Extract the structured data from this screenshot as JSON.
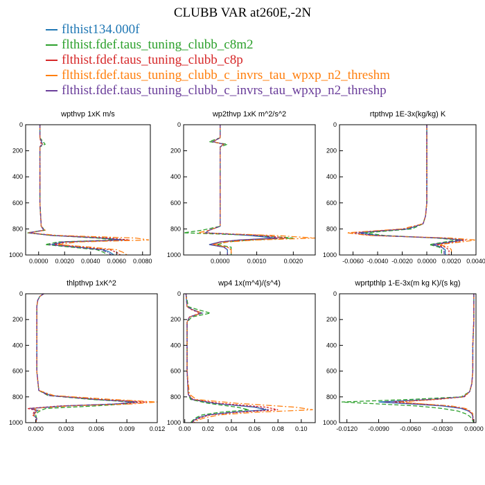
{
  "title": "CLUBB VAR at260E,-2N",
  "colors": {
    "series": [
      "#1f77b4",
      "#2ca02c",
      "#d62728",
      "#ff7f0e",
      "#6a3d9a"
    ]
  },
  "legend": [
    "flthist134.000f",
    "flthist.fdef.taus_tuning_clubb_c8m2",
    "flthist.fdef.taus_tuning_clubb_c8p",
    "flthist.fdef.taus_tuning_clubb_c_invrs_tau_wpxp_n2_threshm",
    "flthist.fdef.taus_tuning_clubb_c_invrs_tau_wpxp_n2_threshp"
  ],
  "chart_data": [
    {
      "type": "line",
      "title": "wpthvp  1xK m/s",
      "xlim": [
        -0.001,
        0.0086
      ],
      "ylim": [
        1000,
        0
      ],
      "xticks": [
        "0.0000",
        "0.0020",
        "0.0040",
        "0.0060",
        "0.0080"
      ],
      "xtick_values": [
        0,
        0.002,
        0.004,
        0.006,
        0.008
      ],
      "yticks": [
        "0",
        "200",
        "400",
        "600",
        "800",
        "1000"
      ],
      "y": [
        0,
        100,
        150,
        170,
        200,
        400,
        600,
        780,
        810,
        830,
        850,
        870,
        885,
        900,
        920,
        940,
        960,
        980,
        1000
      ],
      "series": [
        {
          "x": [
            0.0001,
            0.0001,
            0.0003,
            0.0001,
            0.0001,
            0.0001,
            0.0001,
            0.0002,
            0.0004,
            -0.0008,
            0.001,
            0.005,
            0.0066,
            0.002,
            0.001,
            0.003,
            0.005,
            0.0055,
            0.0058
          ]
        },
        {
          "x": [
            0.0001,
            0.0001,
            0.0005,
            0.0001,
            0.0001,
            0.0001,
            0.0001,
            0.0002,
            0.0005,
            -0.0009,
            0.001,
            0.0045,
            0.006,
            0.0015,
            0.0005,
            0.0025,
            0.0045,
            0.005,
            0.0053
          ]
        },
        {
          "x": [
            0.0001,
            0.0001,
            0.0002,
            0.0001,
            0.0001,
            0.0001,
            0.0001,
            0.0002,
            0.0004,
            -0.0007,
            0.0012,
            0.0055,
            0.007,
            0.0022,
            0.0012,
            0.0035,
            0.0055,
            0.006,
            0.0063
          ]
        },
        {
          "x": [
            0.0001,
            0.0001,
            0.0003,
            0.0001,
            0.0001,
            0.0001,
            0.0001,
            0.0002,
            0.0005,
            -0.0008,
            0.0015,
            0.0075,
            0.0085,
            0.003,
            0.0015,
            0.004,
            0.006,
            0.0065,
            0.0068
          ]
        },
        {
          "x": [
            0.0001,
            0.0001,
            0.0003,
            0.0001,
            0.0001,
            0.0001,
            0.0001,
            0.0002,
            0.0004,
            -0.0008,
            0.001,
            0.0048,
            0.0062,
            0.0018,
            0.0008,
            0.0028,
            0.0048,
            0.0053,
            0.0056
          ]
        }
      ]
    },
    {
      "type": "line",
      "title": "wp2thvp  1xK m^2/s^2",
      "xlim": [
        -0.001,
        0.0026
      ],
      "ylim": [
        1000,
        0
      ],
      "xticks": [
        "0.0000",
        "0.0010",
        "0.0020"
      ],
      "xtick_values": [
        0,
        0.001,
        0.002
      ],
      "yticks": [
        "0",
        "200",
        "400",
        "600",
        "800",
        "1000"
      ],
      "y": [
        0,
        100,
        130,
        150,
        170,
        200,
        400,
        600,
        780,
        810,
        830,
        850,
        870,
        885,
        900,
        920,
        940,
        960,
        1000
      ],
      "series": [
        {
          "x": [
            0.0,
            0.0,
            -0.0002,
            0.0001,
            0.0,
            0.0,
            0.0,
            0.0,
            0.0,
            -0.0003,
            -0.0004,
            0.0008,
            0.0015,
            0.0005,
            0.0,
            -0.0003,
            0.0001,
            0.0002,
            0.0002
          ]
        },
        {
          "x": [
            0.0,
            0.0,
            -0.0003,
            0.0002,
            0.0,
            0.0,
            0.0,
            0.0,
            0.0,
            -0.0005,
            -0.001,
            0.001,
            0.002,
            0.0008,
            0.0002,
            -0.0001,
            0.0003,
            0.0003,
            0.0003
          ]
        },
        {
          "x": [
            0.0,
            0.0,
            -0.0002,
            0.0001,
            0.0,
            0.0,
            0.0,
            0.0,
            0.0,
            -0.0003,
            -0.0004,
            0.0012,
            0.0018,
            0.0006,
            0.0,
            -0.0002,
            0.0002,
            0.0003,
            0.0003
          ]
        },
        {
          "x": [
            0.0,
            0.0,
            -0.0002,
            0.0001,
            0.0,
            0.0,
            0.0,
            0.0,
            0.0,
            -0.0003,
            -0.0006,
            0.0015,
            0.0026,
            0.001,
            0.0002,
            -0.0002,
            0.0002,
            0.0003,
            0.0003
          ]
        },
        {
          "x": [
            0.0,
            0.0,
            -0.0002,
            0.0001,
            0.0,
            0.0,
            0.0,
            0.0,
            0.0,
            -0.0003,
            -0.0004,
            0.0009,
            0.0016,
            0.0005,
            0.0,
            -0.0003,
            0.0001,
            0.0002,
            0.0002
          ]
        }
      ]
    },
    {
      "type": "line",
      "title": "rtpthvp  1E-3x(kg/kg) K",
      "xlim": [
        -0.0071,
        0.004
      ],
      "ylim": [
        1000,
        0
      ],
      "xticks": [
        "-0.0060",
        "-0.0040",
        "-0.0020",
        "0.0000",
        "0.0020",
        "0.0040"
      ],
      "xtick_values": [
        -0.006,
        -0.004,
        -0.002,
        0,
        0.002,
        0.004
      ],
      "yticks": [
        "0",
        "200",
        "400",
        "600",
        "800",
        "1000"
      ],
      "y": [
        0,
        200,
        400,
        600,
        700,
        760,
        800,
        830,
        850,
        870,
        885,
        900,
        920,
        940,
        960,
        980,
        1000
      ],
      "series": [
        {
          "x": [
            0.0,
            0.0,
            0.0,
            0.0,
            -0.0001,
            -0.0003,
            -0.0015,
            -0.0055,
            -0.004,
            0.001,
            0.003,
            0.002,
            0.0005,
            0.0012,
            0.0015,
            0.0015,
            0.0015
          ]
        },
        {
          "x": [
            0.0,
            0.0,
            0.0,
            0.0,
            -0.0001,
            -0.0003,
            -0.0012,
            -0.005,
            -0.0035,
            0.0008,
            0.0025,
            0.0015,
            0.0002,
            0.001,
            0.0012,
            0.0012,
            0.0012
          ]
        },
        {
          "x": [
            0.0,
            0.0,
            0.0,
            0.0,
            -0.0001,
            -0.0003,
            -0.0018,
            -0.0062,
            -0.0045,
            0.0015,
            0.0032,
            0.0022,
            0.0008,
            0.0015,
            0.0018,
            0.0018,
            0.0018
          ]
        },
        {
          "x": [
            0.0,
            0.0,
            0.0,
            0.0,
            -0.0001,
            -0.0003,
            -0.002,
            -0.0065,
            -0.0048,
            0.002,
            0.004,
            0.0028,
            0.001,
            0.0018,
            0.002,
            0.002,
            0.002
          ]
        },
        {
          "x": [
            0.0,
            0.0,
            0.0,
            0.0,
            -0.0001,
            -0.0003,
            -0.0016,
            -0.0058,
            -0.0042,
            0.0012,
            0.0028,
            0.0018,
            0.0004,
            0.0012,
            0.0014,
            0.0014,
            0.0014
          ]
        }
      ]
    },
    {
      "type": "line",
      "title": "thlpthvp  1xK^2",
      "xlim": [
        -0.001,
        0.012
      ],
      "ylim": [
        1000,
        0
      ],
      "xticks": [
        "0.000",
        "0.003",
        "0.006",
        "0.009",
        "0.012"
      ],
      "xtick_values": [
        0,
        0.003,
        0.006,
        0.009,
        0.012
      ],
      "yticks": [
        "0",
        "200",
        "400",
        "600",
        "800",
        "1000"
      ],
      "y": [
        0,
        20,
        50,
        100,
        200,
        400,
        600,
        750,
        790,
        820,
        840,
        855,
        870,
        890,
        905,
        920,
        940,
        970,
        1000
      ],
      "series": [
        {
          "x": [
            0.0008,
            0.0004,
            0.0002,
            0.0001,
            0.0001,
            0.0001,
            0.0001,
            0.0003,
            0.0015,
            0.006,
            0.01,
            0.008,
            0.003,
            -0.0005,
            0.0002,
            0.0,
            -0.0002,
            0.0001,
            0.0
          ]
        },
        {
          "x": [
            0.0008,
            0.0004,
            0.0002,
            0.0001,
            0.0001,
            0.0001,
            0.0001,
            0.0003,
            0.0012,
            0.0055,
            0.0095,
            0.009,
            0.006,
            0.001,
            0.0005,
            0.0002,
            0.0,
            0.0001,
            0.0
          ]
        },
        {
          "x": [
            0.0008,
            0.0004,
            0.0002,
            0.0001,
            0.0001,
            0.0001,
            0.0001,
            0.0003,
            0.0014,
            0.0065,
            0.011,
            0.0085,
            0.0025,
            -0.0008,
            0.0,
            -0.0002,
            -0.0003,
            0.0001,
            0.0
          ]
        },
        {
          "x": [
            0.0008,
            0.0004,
            0.0002,
            0.0001,
            0.0001,
            0.0001,
            0.0001,
            0.0003,
            0.0018,
            0.0075,
            0.012,
            0.0095,
            0.0035,
            -0.0004,
            0.0003,
            0.0,
            -0.0002,
            0.0001,
            0.0
          ]
        },
        {
          "x": [
            0.0008,
            0.0004,
            0.0002,
            0.0001,
            0.0001,
            0.0001,
            0.0001,
            0.0003,
            0.0013,
            0.0058,
            0.0098,
            0.0078,
            0.0028,
            -0.0006,
            0.0001,
            -0.0001,
            -0.0002,
            0.0001,
            0.0
          ]
        }
      ]
    },
    {
      "type": "line",
      "title": "wp4  1x(m^4)/(s^4)",
      "xlim": [
        -0.001,
        0.112
      ],
      "ylim": [
        1000,
        0
      ],
      "xticks": [
        "0.00",
        "0.02",
        "0.04",
        "0.06",
        "0.08",
        "0.10"
      ],
      "xtick_values": [
        0,
        0.02,
        0.04,
        0.06,
        0.08,
        0.1
      ],
      "yticks": [
        "0",
        "200",
        "400",
        "600",
        "800",
        "1000"
      ],
      "y": [
        0,
        100,
        120,
        150,
        180,
        220,
        400,
        600,
        780,
        820,
        850,
        880,
        900,
        920,
        940,
        960,
        980,
        1000
      ],
      "series": [
        {
          "x": [
            0.001,
            0.002,
            0.006,
            0.015,
            0.004,
            0.002,
            0.002,
            0.002,
            0.003,
            0.006,
            0.025,
            0.06,
            0.07,
            0.04,
            0.02,
            0.012,
            0.008,
            0.006
          ]
        },
        {
          "x": [
            0.001,
            0.003,
            0.01,
            0.022,
            0.006,
            0.002,
            0.002,
            0.002,
            0.003,
            0.005,
            0.02,
            0.045,
            0.055,
            0.03,
            0.015,
            0.01,
            0.007,
            0.005
          ]
        },
        {
          "x": [
            0.001,
            0.002,
            0.005,
            0.013,
            0.004,
            0.002,
            0.002,
            0.002,
            0.003,
            0.007,
            0.03,
            0.07,
            0.08,
            0.045,
            0.022,
            0.014,
            0.009,
            0.006
          ]
        },
        {
          "x": [
            0.001,
            0.002,
            0.006,
            0.015,
            0.004,
            0.002,
            0.002,
            0.002,
            0.004,
            0.01,
            0.045,
            0.095,
            0.11,
            0.06,
            0.03,
            0.018,
            0.011,
            0.008
          ]
        },
        {
          "x": [
            0.001,
            0.002,
            0.006,
            0.014,
            0.004,
            0.002,
            0.002,
            0.002,
            0.003,
            0.006,
            0.026,
            0.062,
            0.072,
            0.041,
            0.02,
            0.012,
            0.008,
            0.006
          ]
        }
      ]
    },
    {
      "type": "line",
      "title": "wprtpthlp  1-E-3x(m kg K)/(s kg)",
      "xlim": [
        -0.0127,
        0.0002
      ],
      "ylim": [
        1000,
        0
      ],
      "xticks": [
        "-0.0120",
        "-0.0090",
        "-0.0060",
        "-0.0030",
        "0.0000"
      ],
      "xtick_values": [
        -0.012,
        -0.009,
        -0.006,
        -0.003,
        0
      ],
      "yticks": [
        "0",
        "200",
        "400",
        "600",
        "800",
        "1000"
      ],
      "y": [
        0,
        200,
        400,
        600,
        700,
        760,
        800,
        820,
        840,
        855,
        870,
        890,
        910,
        930,
        950,
        970,
        1000
      ],
      "series": [
        {
          "x": [
            0.0,
            0.0,
            -0.0001,
            -0.0001,
            -0.0002,
            -0.0004,
            -0.001,
            -0.004,
            -0.009,
            -0.006,
            -0.003,
            -0.0012,
            -0.0005,
            -0.0002,
            -0.0001,
            -0.0001,
            0.0
          ]
        },
        {
          "x": [
            0.0,
            0.0,
            -0.0001,
            -0.0001,
            -0.0002,
            -0.0004,
            -0.0012,
            -0.006,
            -0.0125,
            -0.009,
            -0.0055,
            -0.003,
            -0.0015,
            -0.0008,
            -0.0004,
            -0.0002,
            0.0
          ]
        },
        {
          "x": [
            0.0,
            0.0,
            -0.0001,
            -0.0001,
            -0.0002,
            -0.0004,
            -0.0009,
            -0.0035,
            -0.0075,
            -0.005,
            -0.0025,
            -0.001,
            -0.0004,
            -0.0002,
            -0.0001,
            -0.0001,
            0.0
          ]
        },
        {
          "x": [
            0.0,
            0.0,
            -0.0001,
            -0.0001,
            -0.0002,
            -0.0004,
            -0.001,
            -0.0038,
            -0.007,
            -0.0048,
            -0.0022,
            -0.0008,
            -0.0003,
            -0.0001,
            -0.0001,
            0.0,
            0.0
          ]
        },
        {
          "x": [
            0.0,
            0.0,
            -0.0001,
            -0.0001,
            -0.0002,
            -0.0004,
            -0.001,
            -0.0042,
            -0.0085,
            -0.0058,
            -0.0028,
            -0.0011,
            -0.0005,
            -0.0002,
            -0.0001,
            -0.0001,
            0.0
          ]
        }
      ]
    }
  ]
}
